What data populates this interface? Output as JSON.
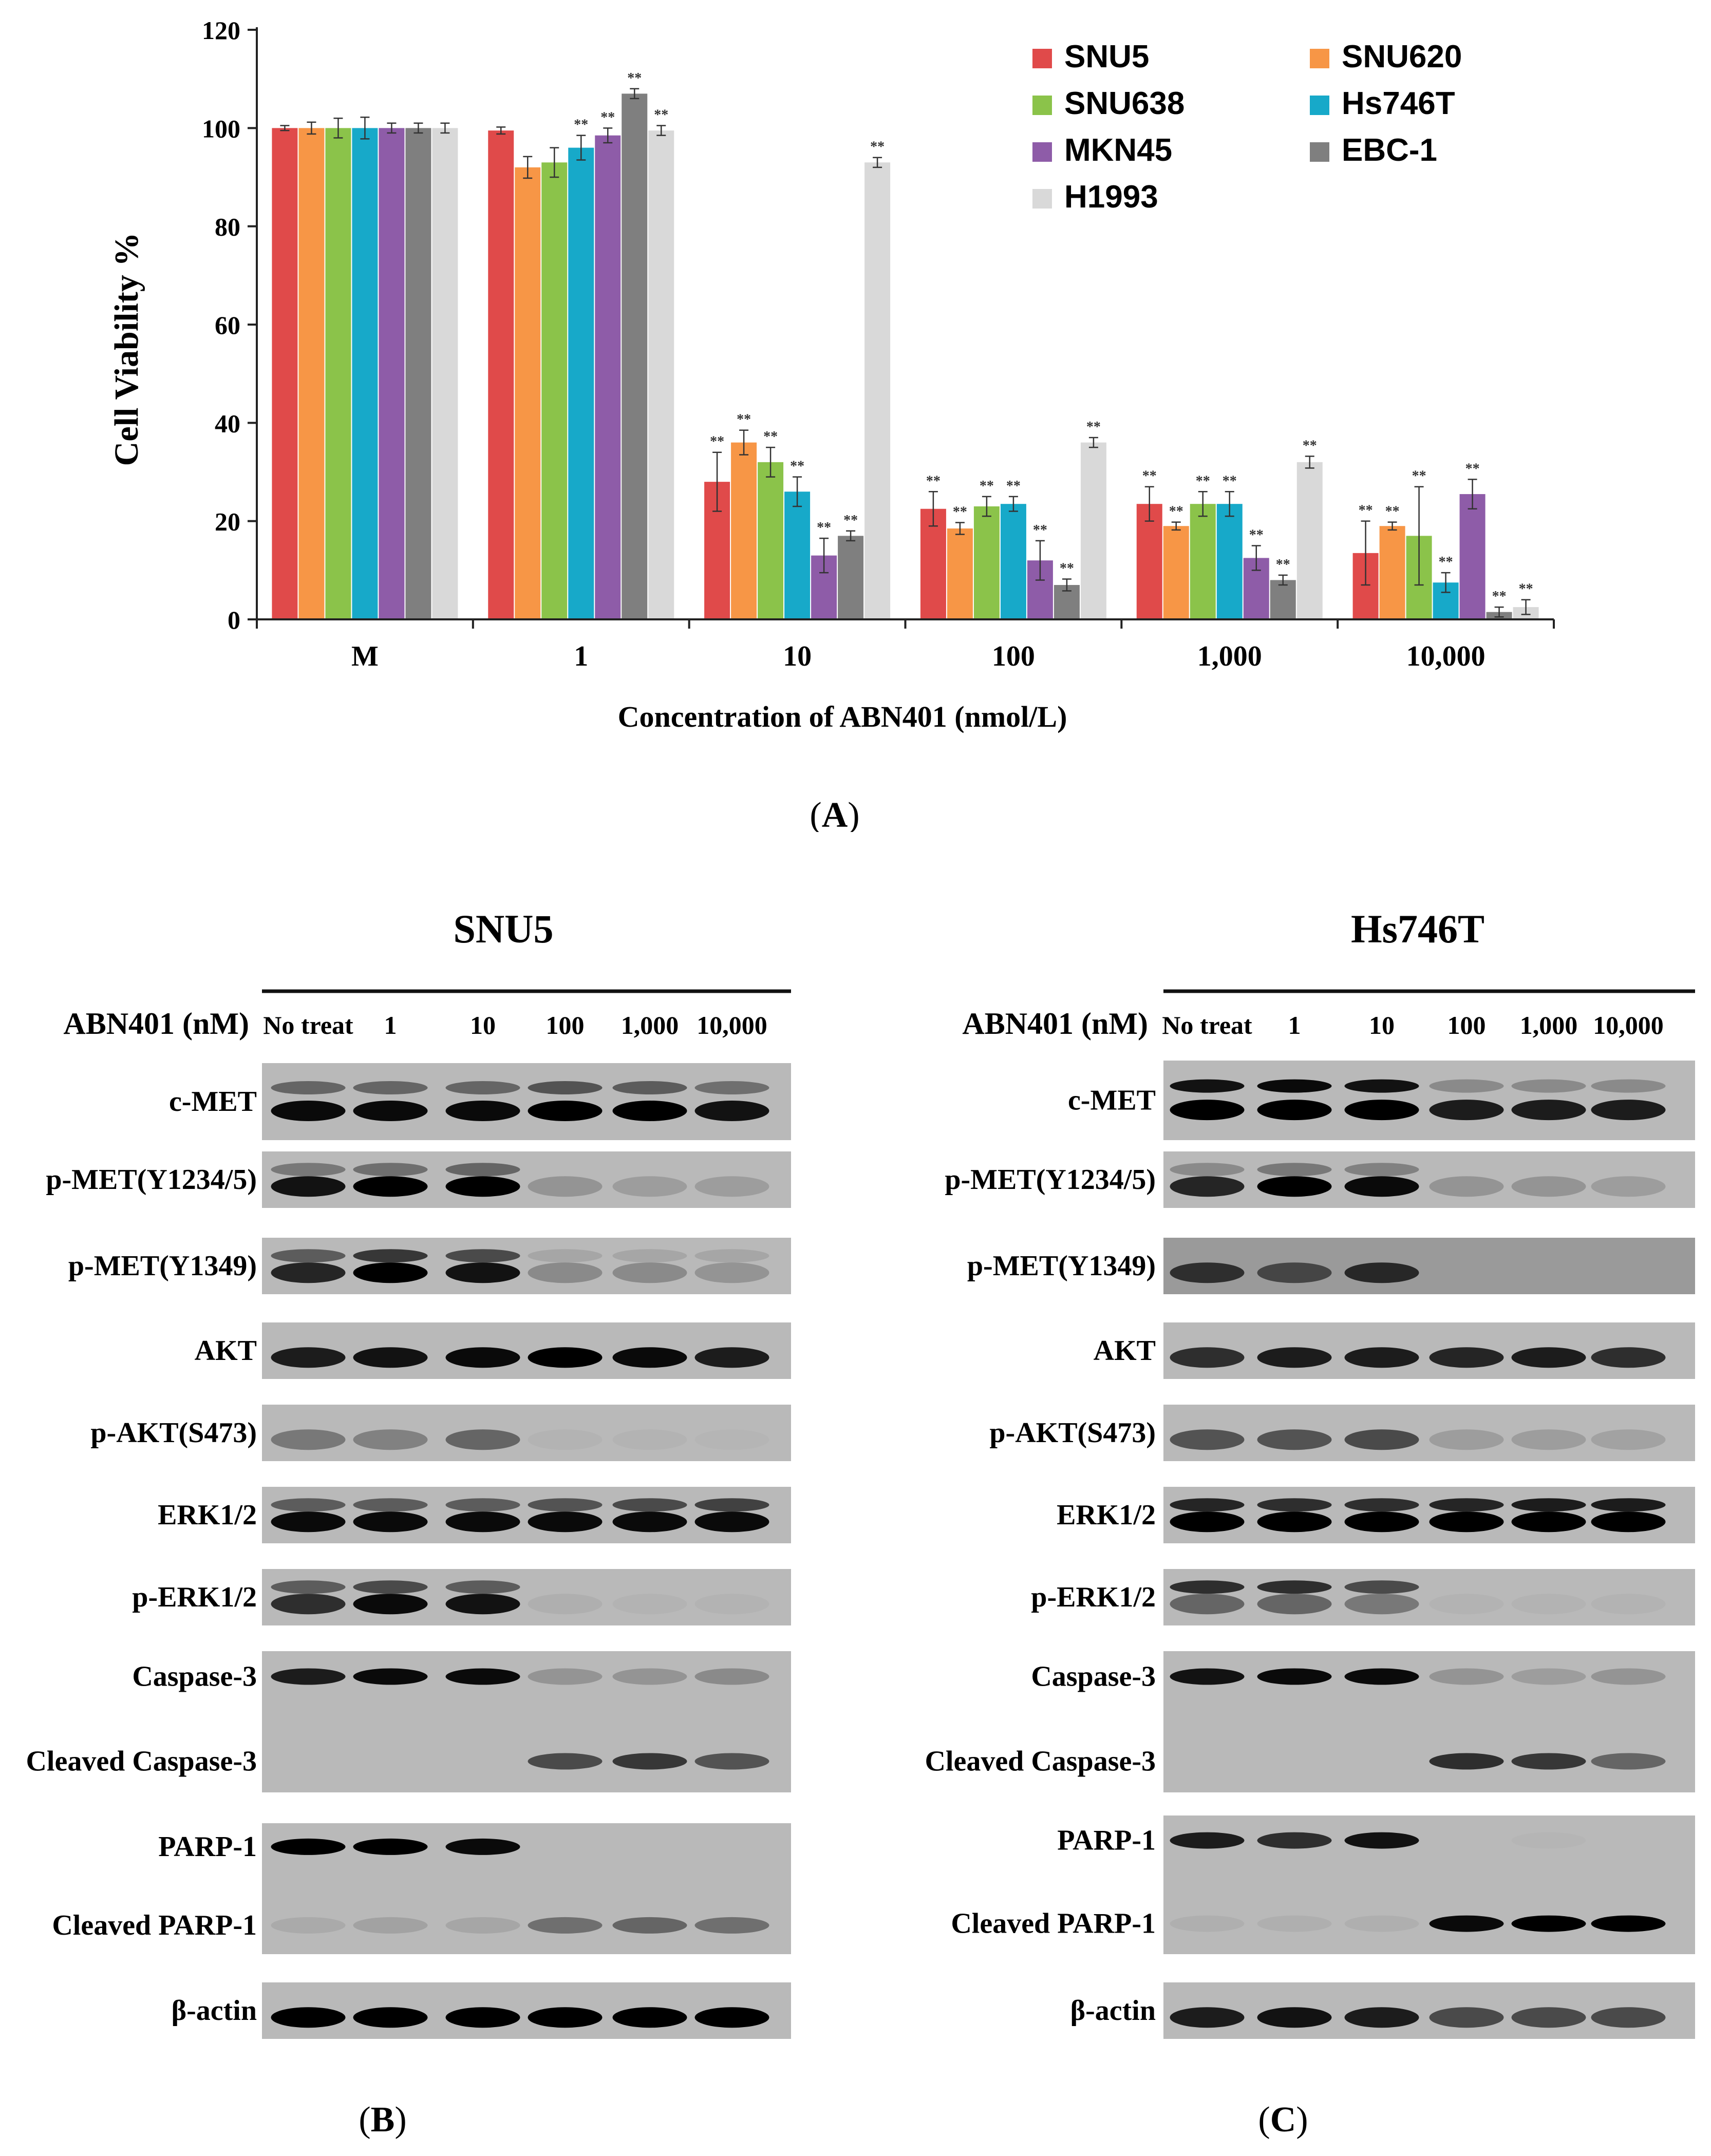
{
  "panel_labels": {
    "a": "A",
    "b": "B",
    "c": "C"
  },
  "chart_data": {
    "type": "bar",
    "ylabel": "Cell Viability %",
    "xlabel": "Concentration of ABN401 (nmol/L)",
    "ylim": [
      0,
      120
    ],
    "yticks": [
      0,
      20,
      40,
      60,
      80,
      100,
      120
    ],
    "categories": [
      "M",
      "1",
      "10",
      "100",
      "1,000",
      "10,000"
    ],
    "legend_position": "top-right",
    "significance_mark": "**",
    "series": [
      {
        "name": "SNU5",
        "color": "#e04a4a",
        "values": [
          100,
          99.5,
          28,
          22.5,
          23.5,
          13.5
        ],
        "errors": [
          0.5,
          0.7,
          6,
          3.5,
          3.5,
          6.5
        ],
        "sig": [
          false,
          false,
          true,
          true,
          true,
          true
        ]
      },
      {
        "name": "SNU620",
        "color": "#f79646",
        "values": [
          100,
          92,
          36,
          18.5,
          19,
          19
        ],
        "errors": [
          1.2,
          2.2,
          2.5,
          1.2,
          0.8,
          0.8
        ],
        "sig": [
          false,
          false,
          true,
          true,
          true,
          true
        ]
      },
      {
        "name": "SNU638",
        "color": "#8bc34a",
        "values": [
          100,
          93,
          32,
          23,
          23.5,
          17
        ],
        "errors": [
          2,
          3,
          3,
          2,
          2.5,
          10
        ],
        "sig": [
          false,
          false,
          true,
          true,
          true,
          true
        ]
      },
      {
        "name": "Hs746T",
        "color": "#17a9c9",
        "values": [
          100,
          96,
          26,
          23.5,
          23.5,
          7.5
        ],
        "errors": [
          2.2,
          2.5,
          3,
          1.5,
          2.5,
          2
        ],
        "sig": [
          false,
          true,
          true,
          true,
          true,
          true
        ]
      },
      {
        "name": "MKN45",
        "color": "#8e5ca8",
        "values": [
          100,
          98.5,
          13,
          12,
          12.5,
          25.5
        ],
        "errors": [
          1,
          1.5,
          3.5,
          4,
          2.5,
          3
        ],
        "sig": [
          false,
          true,
          true,
          true,
          true,
          true
        ]
      },
      {
        "name": "EBC-1",
        "color": "#7f7f7f",
        "values": [
          100,
          107,
          17,
          7,
          8,
          1.5
        ],
        "errors": [
          1,
          1,
          1,
          1.2,
          1,
          1
        ],
        "sig": [
          false,
          true,
          true,
          true,
          true,
          true
        ]
      },
      {
        "name": "H1993",
        "color": "#d9d9d9",
        "values": [
          100,
          99.5,
          93,
          36,
          32,
          2.5
        ],
        "errors": [
          1,
          1,
          1,
          1,
          1.2,
          1.5
        ],
        "sig": [
          false,
          true,
          true,
          true,
          true,
          true
        ]
      }
    ]
  },
  "blots": {
    "treatment_label": "ABN401 (nM)",
    "lanes": [
      "No treat",
      "1",
      "10",
      "100",
      "1,000",
      "10,000"
    ],
    "left": {
      "title": "SNU5"
    },
    "right": {
      "title": "Hs746T"
    },
    "rows": [
      {
        "label": "c-MET"
      },
      {
        "label": "p-MET(Y1234/5)"
      },
      {
        "label": "p-MET(Y1349)"
      },
      {
        "label": "AKT"
      },
      {
        "label": "p-AKT(S473)"
      },
      {
        "label": "ERK1/2"
      },
      {
        "label": "p-ERK1/2"
      },
      {
        "label": "Caspase-3",
        "label2": "Cleaved Caspase-3"
      },
      {
        "label": "PARP-1",
        "label2": "Cleaved PARP-1"
      },
      {
        "label": "β-actin"
      }
    ]
  }
}
